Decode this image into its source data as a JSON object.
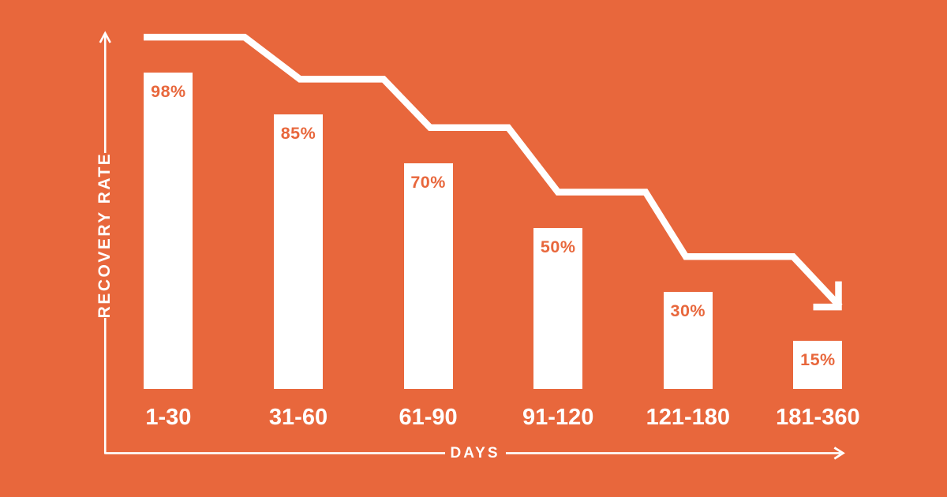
{
  "chart_data": {
    "type": "bar",
    "categories": [
      "1-30",
      "31-60",
      "61-90",
      "91-120",
      "121-180",
      "181-360"
    ],
    "values": [
      98,
      85,
      70,
      50,
      30,
      15
    ],
    "value_suffix": "%",
    "title": "",
    "xlabel": "DAYS",
    "ylabel": "RECOVERY RATE",
    "ylim": [
      0,
      100
    ],
    "grid": false,
    "legend": null,
    "annotation_shapes": [
      "stepped-descending-trend-arrow",
      "y-axis-up-arrow",
      "x-axis-right-arrow"
    ]
  },
  "colors": {
    "background": "#E8673C",
    "bar_fill": "#FFFFFF",
    "bar_value_text": "#E8673C",
    "category_text": "#FFFFFF",
    "axis": "#FFFFFF",
    "trend_line": "#FFFFFF"
  }
}
